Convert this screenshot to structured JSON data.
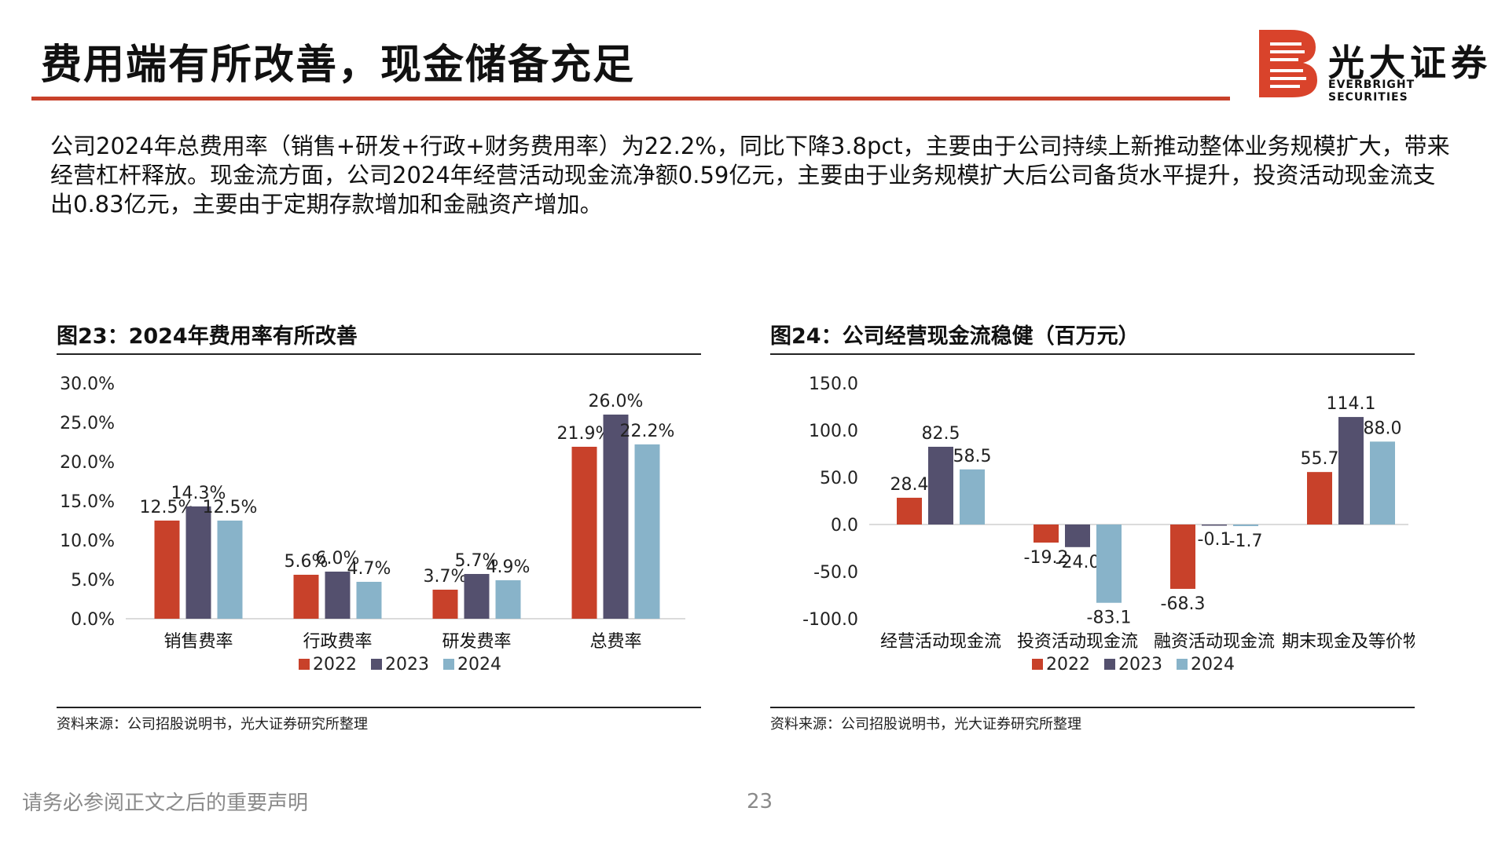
{
  "page": {
    "title": "费用端有所改善，现金储备充足",
    "logo_cn": "光大证券",
    "logo_en": "EVERBRIGHT SECURITIES",
    "intro": "公司2024年总费用率（销售+研发+行政+财务费用率）为22.2%，同比下降3.8pct，主要由于公司持续上新推动整体业务规模扩大，带来经营杠杆释放。现金流方面，公司2024年经营活动现金流净额0.59亿元，主要由于业务规模扩大后公司备货水平提升，投资活动现金流支出0.83亿元，主要由于定期存款增加和金融资产增加。",
    "footer_note": "请务必参阅正文之后的重要声明",
    "page_number": "23"
  },
  "colors": {
    "brand_red": "#c8412a",
    "series_2022": "#c8412a",
    "series_2023": "#54506e",
    "series_2024": "#88b3c9"
  },
  "chart_data": [
    {
      "type": "bar",
      "title": "图23：2024年费用率有所改善",
      "source": "资料来源：公司招股说明书，光大证券研究所整理",
      "categories": [
        "销售费率",
        "行政费率",
        "研发费率",
        "总费率"
      ],
      "series": [
        {
          "name": "2022",
          "values": [
            12.5,
            5.6,
            3.7,
            21.9
          ],
          "labels": [
            "12.5%",
            "5.6%",
            "3.7%",
            "21.9%"
          ]
        },
        {
          "name": "2023",
          "values": [
            14.3,
            6.0,
            5.7,
            26.0
          ],
          "labels": [
            "14.3%",
            "6.0%",
            "5.7%",
            "26.0%"
          ]
        },
        {
          "name": "2024",
          "values": [
            12.5,
            4.7,
            4.9,
            22.2
          ],
          "labels": [
            "12.5%",
            "4.7%",
            "4.9%",
            "22.2%"
          ]
        }
      ],
      "yticks": [
        "0.0%",
        "5.0%",
        "10.0%",
        "15.0%",
        "20.0%",
        "25.0%",
        "30.0%"
      ],
      "ylim": [
        0,
        30
      ],
      "grid": false,
      "legend": "bottom"
    },
    {
      "type": "bar",
      "title": "图24：公司经营现金流稳健（百万元）",
      "source": "资料来源：公司招股说明书，光大证券研究所整理",
      "categories": [
        "经营活动现金流",
        "投资活动现金流",
        "融资活动现金流",
        "期末现金及等价物"
      ],
      "series": [
        {
          "name": "2022",
          "values": [
            28.4,
            -19.2,
            -68.3,
            55.7
          ],
          "labels": [
            "28.4",
            "-19.2",
            "-68.3",
            "55.7"
          ]
        },
        {
          "name": "2023",
          "values": [
            82.5,
            -24.0,
            -0.1,
            114.1
          ],
          "labels": [
            "82.5",
            "-24.0",
            "-0.1",
            "114.1"
          ]
        },
        {
          "name": "2024",
          "values": [
            58.5,
            -83.1,
            -1.7,
            88.0
          ],
          "labels": [
            "58.5",
            "-83.1",
            "-1.7",
            "88.0"
          ]
        }
      ],
      "yticks": [
        "-100.0",
        "-50.0",
        "0.0",
        "50.0",
        "100.0",
        "150.0"
      ],
      "ylim": [
        -100,
        150
      ],
      "grid": false,
      "legend": "bottom"
    }
  ]
}
